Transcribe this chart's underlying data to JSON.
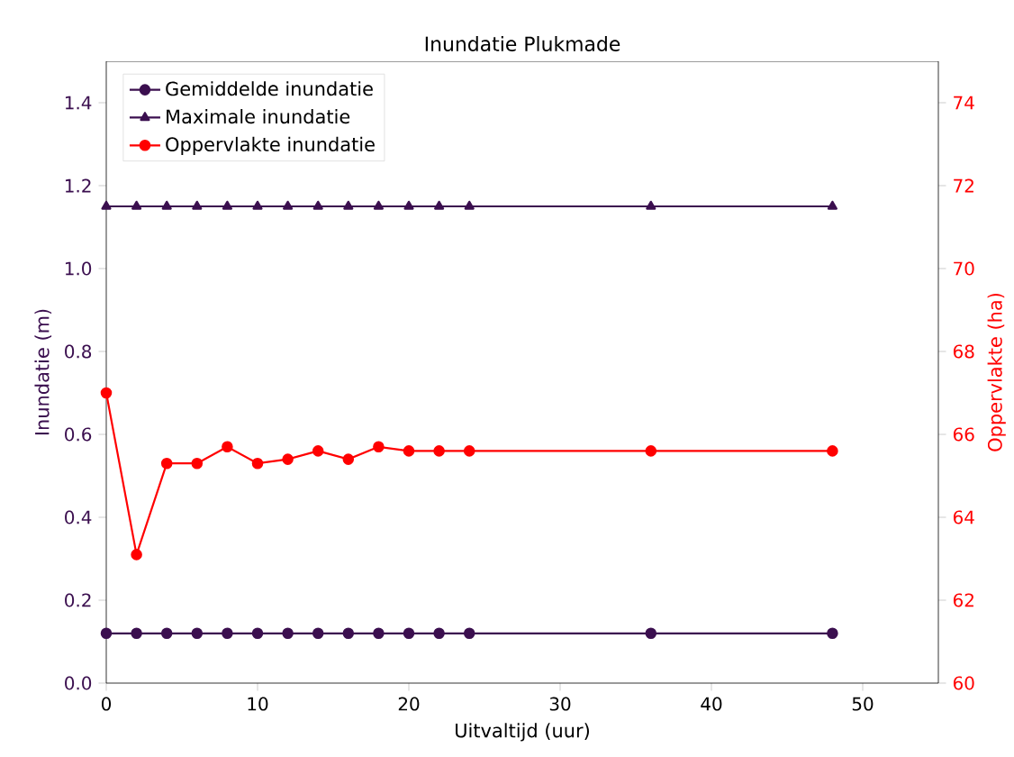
{
  "chart_data": {
    "type": "line",
    "title": "Inundatie Plukmade",
    "xlabel": "Uitvaltijd (uur)",
    "ylabel": "Inundatie (m)",
    "y2label": "Oppervlakte (ha)",
    "x": [
      0,
      2,
      4,
      6,
      8,
      10,
      12,
      14,
      16,
      18,
      20,
      22,
      24,
      36,
      48
    ],
    "series": [
      {
        "name": "Gemiddelde inundatie",
        "color": "#3b0f4f",
        "marker": "circle",
        "values": [
          0.12,
          0.12,
          0.12,
          0.12,
          0.12,
          0.12,
          0.12,
          0.12,
          0.12,
          0.12,
          0.12,
          0.12,
          0.12,
          0.12,
          0.12
        ]
      },
      {
        "name": "Maximale inundatie",
        "color": "#3b0f4f",
        "marker": "triangle",
        "values": [
          1.15,
          1.15,
          1.15,
          1.15,
          1.15,
          1.15,
          1.15,
          1.15,
          1.15,
          1.15,
          1.15,
          1.15,
          1.15,
          1.15,
          1.15
        ]
      },
      {
        "name": "Oppervlakte inundatie",
        "color": "#ff0000",
        "marker": "circle",
        "axis": "y2",
        "values": [
          67.0,
          63.1,
          65.3,
          65.3,
          65.7,
          65.3,
          65.4,
          65.6,
          65.4,
          65.7,
          65.6,
          65.6,
          65.6,
          65.6,
          65.6
        ]
      }
    ],
    "xlim": [
      0,
      55
    ],
    "xticks": [
      0,
      10,
      20,
      30,
      40,
      50
    ],
    "ylim": [
      0,
      1.5
    ],
    "yticks": [
      {
        "value": 0,
        "label": "0.0"
      },
      0.2,
      0.4,
      0.6,
      0.8,
      {
        "value": 1,
        "label": "1.0"
      },
      1.2,
      1.4
    ],
    "y2lim": [
      60,
      75
    ],
    "y2ticks": [
      60,
      62,
      64,
      66,
      68,
      70,
      72,
      74
    ],
    "legend": "top left",
    "grid": false
  }
}
